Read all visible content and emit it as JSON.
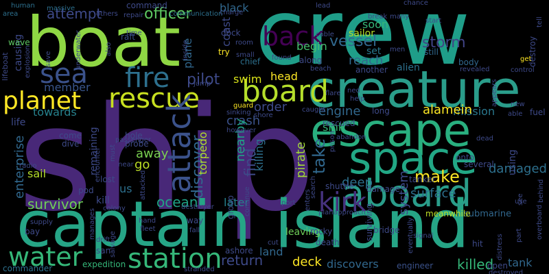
{
  "colors": {
    "background": "#000000",
    "palette": [
      "#440154",
      "#482878",
      "#3e4a89",
      "#31688e",
      "#26828e",
      "#1f9e89",
      "#35b779",
      "#6ece58",
      "#b5de2b",
      "#fde725"
    ]
  },
  "words": [
    {
      "text": "crew"
    },
    {
      "text": "ship"
    },
    {
      "text": "boat"
    },
    {
      "text": "captain"
    },
    {
      "text": "island"
    },
    {
      "text": "creature"
    },
    {
      "text": "escape"
    },
    {
      "text": "space"
    },
    {
      "text": "aboard"
    },
    {
      "text": "planet"
    },
    {
      "text": "rescue"
    },
    {
      "text": "board"
    },
    {
      "text": "fire"
    },
    {
      "text": "sea"
    },
    {
      "text": "back"
    },
    {
      "text": "attack"
    },
    {
      "text": "kirk"
    },
    {
      "text": "station"
    },
    {
      "text": "water"
    },
    {
      "text": "officer"
    },
    {
      "text": "attempt"
    },
    {
      "text": "storm"
    },
    {
      "text": "vessel"
    },
    {
      "text": "pilot"
    },
    {
      "text": "black"
    },
    {
      "text": "discover"
    },
    {
      "text": "find"
    },
    {
      "text": "take"
    },
    {
      "text": "make"
    },
    {
      "text": "surface"
    },
    {
      "text": "ocean"
    },
    {
      "text": "survivor"
    },
    {
      "text": "killed"
    },
    {
      "text": "deck"
    },
    {
      "text": "return"
    },
    {
      "text": "land"
    },
    {
      "text": "towards"
    },
    {
      "text": "member"
    },
    {
      "text": "head"
    },
    {
      "text": "swim"
    },
    {
      "text": "order"
    },
    {
      "text": "crash"
    },
    {
      "text": "engine"
    },
    {
      "text": "mission"
    },
    {
      "text": "alamein"
    },
    {
      "text": "soon"
    },
    {
      "text": "reach"
    },
    {
      "text": "begin"
    },
    {
      "text": "set"
    },
    {
      "text": "sail"
    },
    {
      "text": "enterprise"
    },
    {
      "text": "torpedo"
    },
    {
      "text": "pirate"
    },
    {
      "text": "deep"
    },
    {
      "text": "away"
    },
    {
      "text": "go"
    },
    {
      "text": "us"
    },
    {
      "text": "later"
    },
    {
      "text": "nearby"
    },
    {
      "text": "killing"
    },
    {
      "text": "sink"
    },
    {
      "text": "system"
    },
    {
      "text": "damaged"
    },
    {
      "text": "tank"
    },
    {
      "text": "discovers"
    },
    {
      "text": "leaving"
    },
    {
      "text": "death"
    },
    {
      "text": "rocky"
    },
    {
      "text": "submarine"
    },
    {
      "text": "meanwhile"
    },
    {
      "text": "expedition"
    },
    {
      "text": "commander"
    },
    {
      "text": "engineer"
    },
    {
      "text": "plane"
    },
    {
      "text": "coast"
    },
    {
      "text": "dock"
    },
    {
      "text": "try"
    },
    {
      "text": "chief"
    },
    {
      "text": "sailor"
    },
    {
      "text": "alien"
    },
    {
      "text": "still"
    },
    {
      "text": "body"
    },
    {
      "text": "destroy"
    },
    {
      "text": "life"
    },
    {
      "text": "causing"
    },
    {
      "text": "wave"
    },
    {
      "text": "lifeboat"
    },
    {
      "text": "human"
    },
    {
      "text": "area"
    },
    {
      "text": "massive"
    },
    {
      "text": "command"
    },
    {
      "text": "repair"
    },
    {
      "text": "raft"
    },
    {
      "text": "time"
    },
    {
      "text": "underwater"
    },
    {
      "text": "save"
    },
    {
      "text": "also"
    },
    {
      "text": "others"
    },
    {
      "text": "communication"
    },
    {
      "text": "charge"
    },
    {
      "text": "lead"
    },
    {
      "text": "cable"
    },
    {
      "text": "break"
    },
    {
      "text": "many"
    },
    {
      "text": "chance"
    },
    {
      "text": "start"
    },
    {
      "text": "tell"
    },
    {
      "text": "men"
    },
    {
      "text": "get"
    },
    {
      "text": "revealed"
    },
    {
      "text": "control"
    },
    {
      "text": "found"
    },
    {
      "text": "along"
    },
    {
      "text": "beach"
    },
    {
      "text": "another"
    },
    {
      "text": "small"
    },
    {
      "text": "room"
    },
    {
      "text": "inside"
    },
    {
      "text": "jump"
    },
    {
      "text": "explosion"
    },
    {
      "text": "passenger"
    },
    {
      "text": "encounter"
    },
    {
      "text": "guard"
    },
    {
      "text": "sinking"
    },
    {
      "text": "shore"
    },
    {
      "text": "however"
    },
    {
      "text": "rescued"
    },
    {
      "text": "abandon"
    },
    {
      "text": "flare"
    },
    {
      "text": "ned"
    },
    {
      "text": "help"
    },
    {
      "text": "caught"
    },
    {
      "text": "long"
    },
    {
      "text": "new"
    },
    {
      "text": "fuel"
    },
    {
      "text": "able"
    },
    {
      "text": "appears"
    },
    {
      "text": "dead"
    },
    {
      "text": "onto"
    },
    {
      "text": "several"
    },
    {
      "text": "shuttle"
    },
    {
      "text": "damage"
    },
    {
      "text": "tanker"
    },
    {
      "text": "using"
    },
    {
      "text": "use"
    },
    {
      "text": "see"
    },
    {
      "text": "overboard"
    },
    {
      "text": "behind"
    },
    {
      "text": "part"
    },
    {
      "text": "distress"
    },
    {
      "text": "destroyed"
    },
    {
      "text": "open"
    },
    {
      "text": "hit"
    },
    {
      "text": "signal"
    },
    {
      "text": "eventually"
    },
    {
      "text": "surviving"
    },
    {
      "text": "bridge"
    },
    {
      "text": "plan"
    },
    {
      "text": "approach"
    },
    {
      "text": "enters"
    },
    {
      "text": "search"
    },
    {
      "text": "port"
    },
    {
      "text": "cut"
    },
    {
      "text": "ashore"
    },
    {
      "text": "continue"
    },
    {
      "text": "group"
    },
    {
      "text": "fall"
    },
    {
      "text": "way"
    },
    {
      "text": "hand"
    },
    {
      "text": "fleet"
    },
    {
      "text": "san"
    },
    {
      "text": "salvage"
    },
    {
      "text": "manages"
    },
    {
      "text": "bay"
    },
    {
      "text": "supply"
    },
    {
      "text": "colony"
    },
    {
      "text": "destroyer"
    },
    {
      "text": "kill"
    },
    {
      "text": "pod"
    },
    {
      "text": "radio"
    },
    {
      "text": "lost"
    },
    {
      "text": "attacked"
    },
    {
      "text": "near"
    },
    {
      "text": "must"
    },
    {
      "text": "remaining"
    },
    {
      "text": "dive"
    },
    {
      "text": "come"
    },
    {
      "text": "probe"
    },
    {
      "text": "hole"
    },
    {
      "text": "drift"
    },
    {
      "text": "stranded"
    },
    {
      "text": "prison"
    }
  ]
}
